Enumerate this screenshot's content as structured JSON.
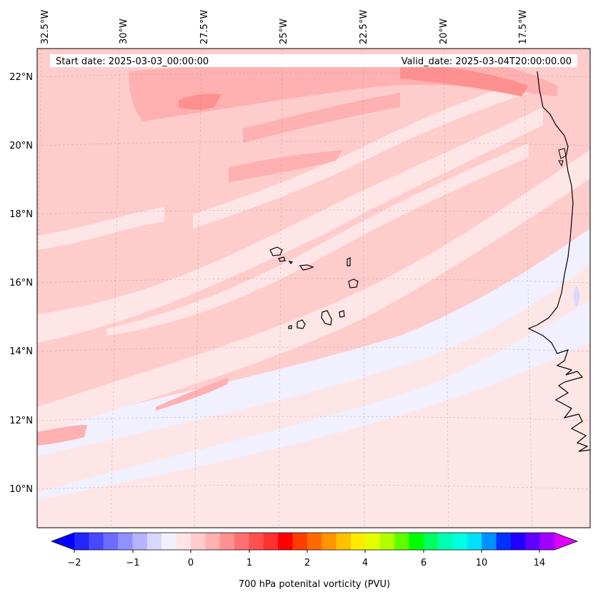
{
  "header": {
    "start_date": "Start date: 2025-03-03_00:00:00",
    "valid_date": "Valid_date: 2025-03-04T20:00:00.00"
  },
  "map": {
    "projection": "conic",
    "gridlines": true,
    "longitude_labels": [
      "32.5°W",
      "30°W",
      "27.5°W",
      "25°W",
      "22.5°W",
      "20°W",
      "17.5°W"
    ],
    "latitude_labels": [
      "22°N",
      "20°N",
      "18°N",
      "16°N",
      "14°N",
      "12°N",
      "10°N"
    ],
    "field": "700 hPa potential vorticity",
    "features": [
      "Cabo Verde islands",
      "West African coastline"
    ]
  },
  "colorbar": {
    "label": "700 hPa potenital vorticity (PVU)",
    "tick_labels": [
      "−2",
      "−1",
      "0",
      "1",
      "2",
      "4",
      "6",
      "10",
      "14"
    ],
    "colors": [
      "#0000ff",
      "#2424ff",
      "#4848ff",
      "#6c6cff",
      "#9090ff",
      "#b4b4ff",
      "#d8d8ff",
      "#f0f0ff",
      "#ffe6e6",
      "#ffcccc",
      "#ffb0b0",
      "#ff9090",
      "#ff7070",
      "#ff5050",
      "#ff3030",
      "#ff0000",
      "#ff3c00",
      "#ff6a00",
      "#ff9600",
      "#ffc000",
      "#ffea00",
      "#e6ff00",
      "#b0ff00",
      "#60ff00",
      "#00ff00",
      "#00ff60",
      "#00ffb0",
      "#00ffe0",
      "#00e0ff",
      "#0090ff",
      "#0030ff",
      "#2000ff",
      "#6000ff",
      "#a000ff",
      "#e000ff"
    ]
  }
}
